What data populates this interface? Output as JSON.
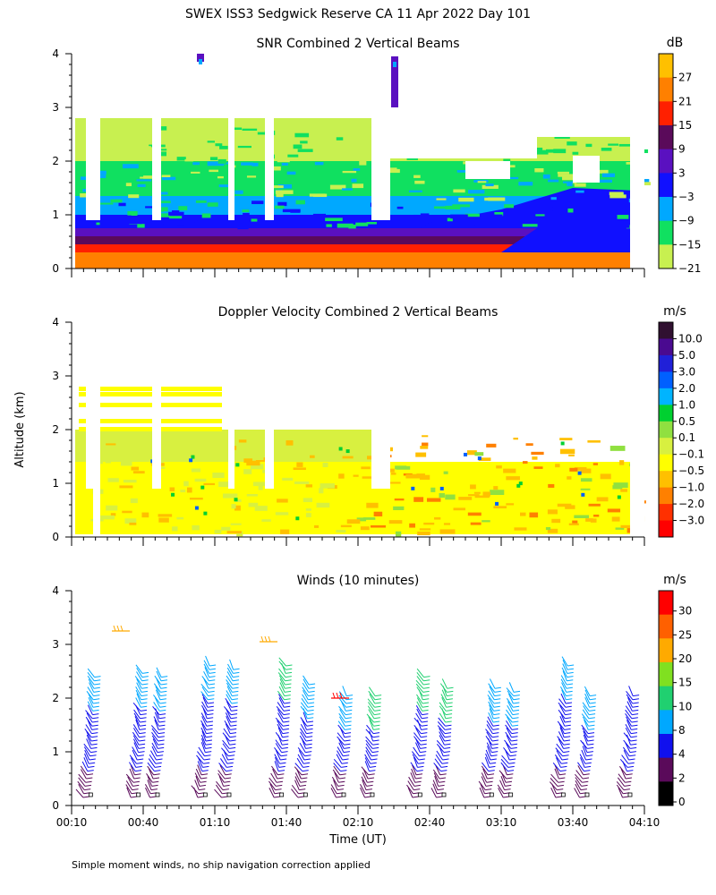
{
  "figure": {
    "title": "SWEX ISS3 Sedgwick Reserve CA  11 Apr 2022 Day 101",
    "ylabel": "Altitude (km)",
    "xlabel": "Time (UT)",
    "footnote": "Simple moment winds, no ship navigation correction applied"
  },
  "chart_data": [
    {
      "type": "heatmap",
      "title": "SNR Combined 2 Vertical Beams",
      "ylim": [
        0,
        4
      ],
      "yticks": [
        "0",
        "1",
        "2",
        "3",
        "4"
      ],
      "xlim": [
        "00:10",
        "04:10"
      ],
      "xtick_labels": [
        "00:10",
        "00:40",
        "01:10",
        "01:40",
        "02:10",
        "02:40",
        "03:10",
        "03:40",
        "04:10"
      ],
      "colorbar": {
        "unit": "dB",
        "labels": [
          "27",
          "21",
          "15",
          "9",
          "3",
          "−3",
          "−9",
          "−15",
          "−21"
        ],
        "colors": [
          "#ffc000",
          "#ff8000",
          "#ff2000",
          "#5a0a5a",
          "#5a10c0",
          "#1010ff",
          "#00a8ff",
          "#10e060",
          "#c8f050"
        ]
      },
      "layers_by_altitude_km": [
        {
          "from": 0.0,
          "to": 0.15,
          "snr_db": 18
        },
        {
          "from": 0.15,
          "to": 0.3,
          "snr_db": 21
        },
        {
          "from": 0.3,
          "to": 0.45,
          "snr_db": 12
        },
        {
          "from": 0.45,
          "to": 0.6,
          "snr_db": 6
        },
        {
          "from": 0.6,
          "to": 0.75,
          "snr_db": 3
        },
        {
          "from": 0.75,
          "to": 1.0,
          "snr_db": -6
        },
        {
          "from": 1.0,
          "to": 1.35,
          "snr_db": -12
        },
        {
          "from": 1.35,
          "to": 2.0,
          "snr_db": -18
        },
        {
          "from": 2.0,
          "to": 2.8,
          "snr_db": -21
        }
      ]
    },
    {
      "type": "heatmap",
      "title": "Doppler Velocity Combined 2 Vertical Beams",
      "ylim": [
        0,
        4
      ],
      "yticks": [
        "0",
        "1",
        "2",
        "3",
        "4"
      ],
      "xlim": [
        "00:10",
        "04:10"
      ],
      "colorbar": {
        "unit": "m/s",
        "labels": [
          "10.0",
          "5.0",
          "3.0",
          "2.0",
          "1.0",
          "0.5",
          "0.1",
          "−0.1",
          "−0.5",
          "−1.0",
          "−2.0",
          "−3.0"
        ],
        "colors": [
          "#301030",
          "#4a0a90",
          "#2020d8",
          "#0060ff",
          "#00b4ff",
          "#00d030",
          "#90e040",
          "#d8f040",
          "#ffff00",
          "#ffc000",
          "#ff8000",
          "#ff3000",
          "#ff0000"
        ]
      },
      "layers_by_altitude_km": [
        {
          "from": 0.0,
          "to": 1.4,
          "velocity_ms": 0.0
        },
        {
          "from": 1.4,
          "to": 2.8,
          "velocity_ms": 0.0
        }
      ]
    },
    {
      "type": "scatter",
      "title": "Winds (10 minutes)",
      "ylim": [
        0,
        4
      ],
      "yticks": [
        "0",
        "1",
        "2",
        "3",
        "4"
      ],
      "xlim": [
        "00:10",
        "04:10"
      ],
      "colorbar": {
        "unit": "m/s",
        "labels": [
          "30",
          "25",
          "20",
          "15",
          "10",
          "8",
          "4",
          "2",
          "0"
        ],
        "colors": [
          "#ff0000",
          "#ff6000",
          "#ffaa00",
          "#80e020",
          "#20d070",
          "#00a8ff",
          "#1010ee",
          "#5a0a5a",
          "#000000"
        ]
      },
      "profiles": [
        {
          "time": "00:18",
          "top_km": 2.45,
          "speed_ms": 6
        },
        {
          "time": "00:38",
          "top_km": 2.5,
          "speed_ms": 6
        },
        {
          "time": "00:46",
          "top_km": 2.4,
          "speed_ms": 6
        },
        {
          "time": "01:06",
          "top_km": 2.65,
          "speed_ms": 6
        },
        {
          "time": "01:16",
          "top_km": 2.55,
          "speed_ms": 6
        },
        {
          "time": "01:38",
          "top_km": 2.6,
          "speed_ms": 10
        },
        {
          "time": "01:48",
          "top_km": 2.3,
          "speed_ms": 6
        },
        {
          "time": "02:04",
          "top_km": 2.1,
          "speed_ms": 6
        },
        {
          "time": "02:16",
          "top_km": 2.1,
          "speed_ms": 10
        },
        {
          "time": "02:36",
          "top_km": 2.4,
          "speed_ms": 10
        },
        {
          "time": "02:46",
          "top_km": 2.2,
          "speed_ms": 10
        },
        {
          "time": "03:06",
          "top_km": 2.2,
          "speed_ms": 8
        },
        {
          "time": "03:14",
          "top_km": 2.15,
          "speed_ms": 6
        },
        {
          "time": "03:36",
          "top_km": 2.65,
          "speed_ms": 6
        },
        {
          "time": "03:46",
          "top_km": 2.1,
          "speed_ms": 6
        },
        {
          "time": "04:04",
          "top_km": 2.1,
          "speed_ms": 4
        }
      ]
    }
  ]
}
